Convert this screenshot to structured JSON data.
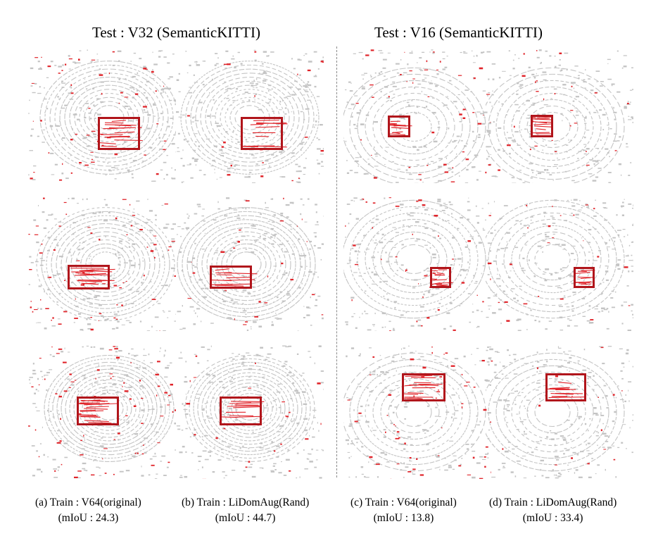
{
  "headers": {
    "left": "Test : V32 (SemanticKITTI)",
    "right": "Test : V16 (SemanticKITTI)"
  },
  "captions": [
    {
      "label": "(a)   Train : V64(original)",
      "metric": "(mIoU : 24.3)"
    },
    {
      "label": "(b) Train : LiDomAug(Rand)",
      "metric": "(mIoU : 44.7)"
    },
    {
      "label": "(c) Train : V64(original)",
      "metric": "(mIoU : 13.8)"
    },
    {
      "label": "(d) Train : LiDomAug(Rand)",
      "metric": "(mIoU : 33.4)"
    }
  ],
  "colors": {
    "highlight_box": "#b1151b",
    "error_points": "#e0242a",
    "point_cloud": "#c4c4c4",
    "divider": "#8a8a8a"
  }
}
